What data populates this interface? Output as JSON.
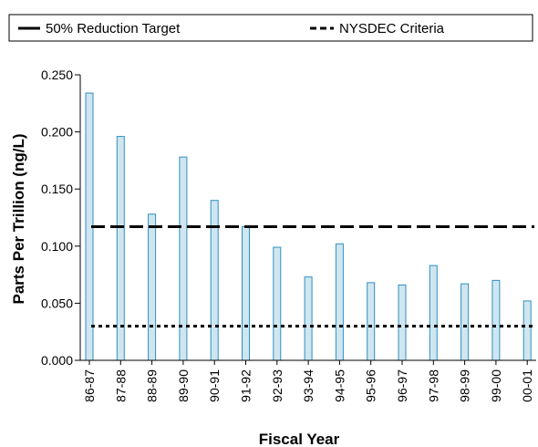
{
  "legend": {
    "items": [
      {
        "label": "50% Reduction Target",
        "style": "dashed"
      },
      {
        "label": "NYSDEC Criteria",
        "style": "dotted"
      }
    ]
  },
  "chart_data": {
    "type": "bar",
    "categories": [
      "86-87",
      "87-88",
      "88-89",
      "89-90",
      "90-91",
      "91-92",
      "92-93",
      "93-94",
      "94-95",
      "95-96",
      "96-97",
      "97-98",
      "98-99",
      "99-00",
      "00-01"
    ],
    "values": [
      0.234,
      0.196,
      0.128,
      0.178,
      0.14,
      0.117,
      0.099,
      0.073,
      0.102,
      0.068,
      0.066,
      0.083,
      0.067,
      0.07,
      0.052
    ],
    "xlabel": "Fiscal Year",
    "ylabel": "Parts Per Trillion (ng/L)",
    "ylim": [
      0,
      0.25
    ],
    "yticks": [
      "0.000",
      "0.050",
      "0.100",
      "0.150",
      "0.200",
      "0.250"
    ],
    "reference_lines": [
      {
        "name": "50% Reduction Target",
        "value": 0.117,
        "style": "dashed"
      },
      {
        "name": "NYSDEC Criteria",
        "value": 0.03,
        "style": "dotted"
      }
    ],
    "bar_color": "#cfe6f1",
    "bar_edge_color": "#2f8fbf",
    "legend_position": "top",
    "grid": false
  }
}
